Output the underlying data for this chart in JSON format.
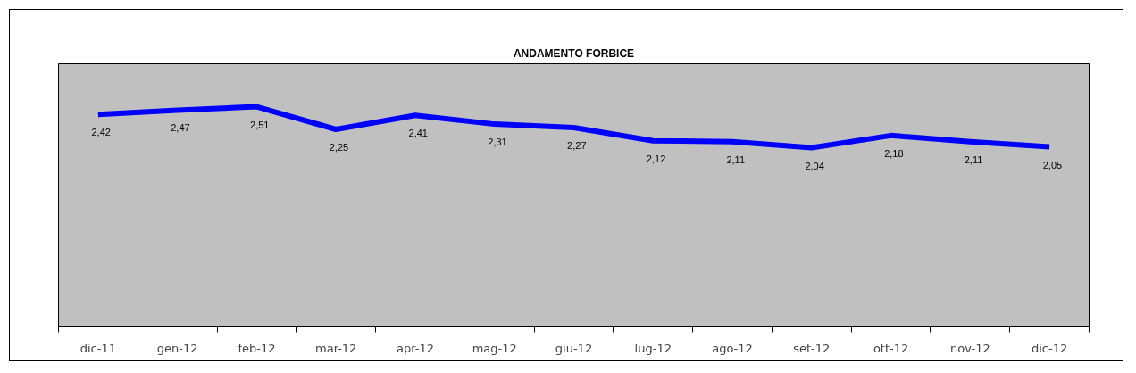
{
  "chart_data": {
    "type": "line",
    "title": "ANDAMENTO FORBICE",
    "categories": [
      "dic-11",
      "gen-12",
      "feb-12",
      "mar-12",
      "apr-12",
      "mag-12",
      "giu-12",
      "lug-12",
      "ago-12",
      "set-12",
      "ott-12",
      "nov-12",
      "dic-12"
    ],
    "series": [
      {
        "color": "#0000ff",
        "values": [
          2.42,
          2.47,
          2.51,
          2.25,
          2.41,
          2.31,
          2.27,
          2.12,
          2.11,
          2.04,
          2.18,
          2.11,
          2.05
        ],
        "value_labels": [
          "2,42",
          "2,47",
          "2,51",
          "2,25",
          "2,41",
          "2,31",
          "2,27",
          "2,12",
          "2,11",
          "2,04",
          "2,18",
          "2,11",
          "2,05"
        ]
      }
    ],
    "ylim": [
      0,
      3
    ],
    "tick_labels": "x",
    "grid": false,
    "marker": "none",
    "line_style": "solid"
  }
}
